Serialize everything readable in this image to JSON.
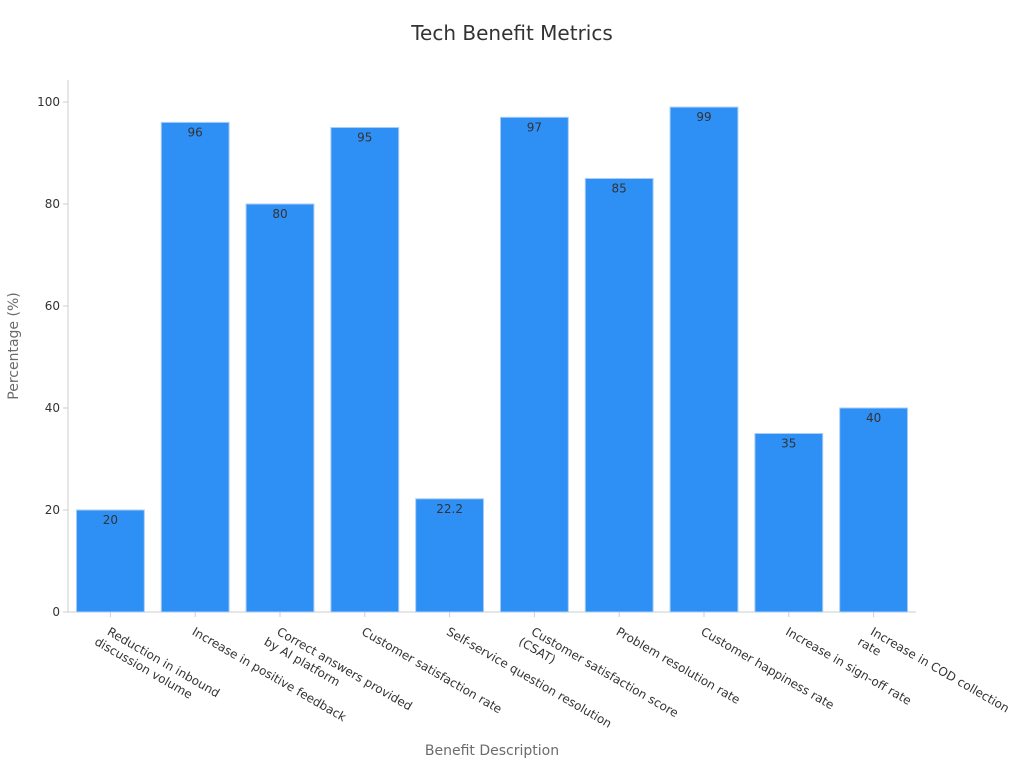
{
  "colors": {
    "bar": "#2e90f5",
    "bar_stroke": "#a9cdf6",
    "text": "#333333",
    "axis_title": "#6b6b6b",
    "axis": "#cccccc"
  },
  "chart_data": {
    "type": "bar",
    "title": "Tech Benefit Metrics",
    "xlabel": "Benefit Description",
    "ylabel": "Percentage (%)",
    "ylim": [
      0,
      104
    ],
    "yticks": [
      0,
      20,
      40,
      60,
      80,
      100
    ],
    "grid": false,
    "categories": [
      [
        "Reduction in inbound",
        "discussion volume"
      ],
      [
        "Increase in positive feedback"
      ],
      [
        "Correct answers provided",
        "by AI platform"
      ],
      [
        "Customer satisfaction rate"
      ],
      [
        "Self-service question resolution"
      ],
      [
        "Customer satisfaction score",
        "(CSAT)"
      ],
      [
        "Problem resolution rate"
      ],
      [
        "Customer happiness rate"
      ],
      [
        "Increase in sign-off rate"
      ],
      [
        "Increase in COD collection",
        "rate"
      ]
    ],
    "values": [
      20,
      96,
      80,
      95,
      22.2,
      97,
      85,
      99,
      35,
      40
    ],
    "value_labels": [
      "20",
      "96",
      "80",
      "95",
      "22.2",
      "97",
      "85",
      "99",
      "35",
      "40"
    ]
  }
}
